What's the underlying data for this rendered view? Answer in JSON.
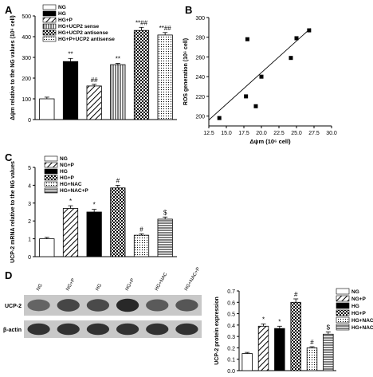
{
  "panels": [
    {
      "label": "A"
    },
    {
      "label": "B"
    },
    {
      "label": "C"
    },
    {
      "label": "D"
    }
  ],
  "chart_data": [
    {
      "panel": "A",
      "type": "bar",
      "categories": [
        "NG",
        "HG",
        "HG+P",
        "HG+UCP2 sense",
        "HG+UCP2 antisense",
        "HG+P+UCP2 antisense"
      ],
      "values": [
        100,
        280,
        162,
        265,
        430,
        408
      ],
      "errors": [
        8,
        15,
        8,
        6,
        15,
        12
      ],
      "annotations": [
        "",
        "**",
        "##",
        "**",
        "**##",
        "**##"
      ],
      "ylabel": "Δψm relative to the NG values (10⁶ cell)",
      "ylim": [
        0,
        500
      ],
      "yticks": [
        0,
        100,
        200,
        300,
        400,
        500
      ],
      "fills": [
        "white",
        "black",
        "diag",
        "vlines",
        "checker",
        "dots"
      ]
    },
    {
      "panel": "B",
      "type": "scatter",
      "x": [
        14.0,
        17.8,
        18.0,
        19.2,
        20.0,
        24.2,
        25.0,
        26.8
      ],
      "y": [
        198,
        220,
        278,
        210,
        240,
        259,
        279,
        287
      ],
      "fit": [
        [
          12.5,
          196
        ],
        [
          27.0,
          289
        ]
      ],
      "xlabel": "Δψm (10⁶ cell)",
      "ylabel": "ROS generation (10⁶ cell)",
      "xlim": [
        12.5,
        30.0
      ],
      "ylim": [
        190,
        300
      ],
      "xticks": [
        "12.5",
        "15.0",
        "17.5",
        "20.0",
        "22.5",
        "25.0",
        "27.5",
        "30.0"
      ],
      "yticks": [
        "200",
        "220",
        "240",
        "260",
        "280",
        "300"
      ]
    },
    {
      "panel": "C",
      "type": "bar",
      "categories": [
        "NG",
        "NG+P",
        "HG",
        "HG+P",
        "HG+NAC",
        "HG+NAC+P"
      ],
      "values": [
        1.0,
        2.7,
        2.5,
        3.85,
        1.2,
        2.1
      ],
      "errors": [
        0.08,
        0.15,
        0.15,
        0.15,
        0.08,
        0.12
      ],
      "annotations": [
        "",
        "*",
        "*",
        "#",
        "#",
        "$"
      ],
      "ylabel": "UCP-2 mRNA relative to the NG values",
      "ylim": [
        0,
        5
      ],
      "yticks": [
        0,
        1,
        2,
        3,
        4,
        5
      ],
      "fills": [
        "white",
        "diag",
        "black",
        "checker",
        "dots",
        "hlines"
      ]
    },
    {
      "panel": "D",
      "type": "bar",
      "categories": [
        "NG",
        "NG+P",
        "HG",
        "HG+P",
        "HG+NAC",
        "HG+NAC+P"
      ],
      "values": [
        0.15,
        0.39,
        0.37,
        0.6,
        0.2,
        0.32
      ],
      "errors": [
        0.01,
        0.02,
        0.02,
        0.03,
        0.01,
        0.02
      ],
      "annotations": [
        "",
        "*",
        "*",
        "#",
        "#",
        "$"
      ],
      "ylabel": "UCP-2 protein expression",
      "ylim": [
        0,
        0.7
      ],
      "yticks": [
        "0.0",
        "0.1",
        "0.2",
        "0.3",
        "0.4",
        "0.5",
        "0.6",
        "0.7"
      ],
      "fills": [
        "white",
        "diag",
        "black",
        "checker",
        "dots",
        "hlines"
      ]
    }
  ],
  "blot": {
    "lane_labels": [
      "NG",
      "NG+P",
      "HG",
      "HG+P",
      "HG+NAC",
      "HG+NAC+P"
    ],
    "rows": [
      {
        "label": "UCP-2",
        "intensity": [
          0.55,
          0.7,
          0.68,
          0.85,
          0.6,
          0.62
        ]
      },
      {
        "label": "β-actin",
        "intensity": [
          0.8,
          0.8,
          0.8,
          0.8,
          0.8,
          0.8
        ]
      }
    ]
  }
}
